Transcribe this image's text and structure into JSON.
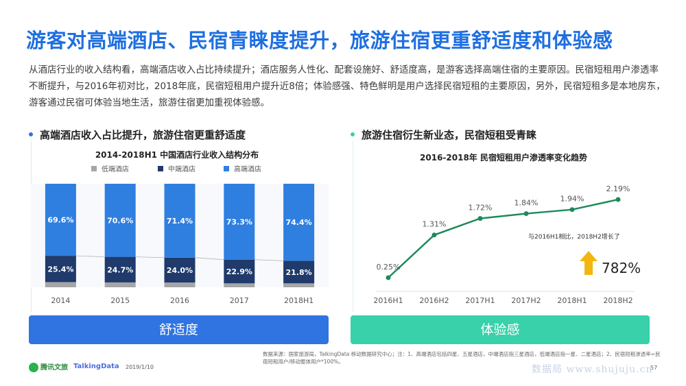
{
  "title": "游客对高端酒店、民宿青睐度提升，旅游住宿更重舒适度和体验感",
  "intro": "从酒店行业的收入结构看，高端酒店收入占比持续提升；酒店服务人性化、配套设施好、舒适度高，是游客选择高端住宿的主要原因。民宿短租用户渗透率不断提升，与2016年初对比，2018年底，民宿短租用户提升近8倍；体验感强、特色鲜明是用户选择民宿短租的主要原因，另外，民宿短租多是本地房东，游客通过民宿可体验当地生活，旅游住宿更加重视体验感。",
  "left": {
    "heading": "高端酒店收入占比提升，旅游住宿更重舒适度",
    "banner": "舒适度"
  },
  "right": {
    "heading": "旅游住宿衍生新业态，民宿短租受青睐",
    "banner": "体验感",
    "annotation": "与2016H1相比，2018H2增长了",
    "growth": "782%"
  },
  "colors": {
    "low": "#a6a6a6",
    "mid": "#1f3a6b",
    "high": "#2f7fe0",
    "line": "#1d8a5a",
    "left_banner": "#2f74e0",
    "right_banner": "#38d1aa",
    "arrow": "#f2b60f"
  },
  "chart_data": [
    {
      "type": "bar",
      "stacked": true,
      "title": "2014-2018H1 中国酒店行业收入结构分布",
      "categories": [
        "2014",
        "2015",
        "2016",
        "2017",
        "2018H1"
      ],
      "series": [
        {
          "name": "低端酒店",
          "values": [
            5.0,
            4.7,
            4.6,
            3.8,
            3.8
          ]
        },
        {
          "name": "中端酒店",
          "values": [
            25.4,
            24.7,
            24.0,
            22.9,
            21.8
          ],
          "labels": [
            "25.4%",
            "24.7%",
            "24.0%",
            "22.9%",
            "21.8%"
          ]
        },
        {
          "name": "高端酒店",
          "values": [
            69.6,
            70.6,
            71.4,
            73.3,
            74.4
          ],
          "labels": [
            "69.6%",
            "70.6%",
            "71.4%",
            "73.3%",
            "74.4%"
          ]
        }
      ],
      "ylim": [
        0,
        100
      ],
      "legend": "top"
    },
    {
      "type": "line",
      "title": "2016-2018年 民宿短租用户渗透率变化趋势",
      "categories": [
        "2016H1",
        "2016H2",
        "2017H1",
        "2017H2",
        "2018H1",
        "2018H2"
      ],
      "values": [
        0.25,
        1.31,
        1.72,
        1.84,
        1.94,
        2.19
      ],
      "labels": [
        "0.25%",
        "1.31%",
        "1.72%",
        "1.84%",
        "1.94%",
        "2.19%"
      ]
    }
  ],
  "source": "数据来源：国家旅游局，TalkingData 移动数据研究中心；注：1、高端酒店包括四星、五星酒店，中端酒店指三星酒店，低端酒店指一星、二星酒店；2、民宿短租渗透率=民宿短租用户/移动整体用户*100%。",
  "footer": {
    "logo1": "腾讯文旅",
    "logo2": "TalkingData",
    "date": "2019/1/10",
    "watermark": "数据局 www.shujuju.cn",
    "page": "57"
  }
}
